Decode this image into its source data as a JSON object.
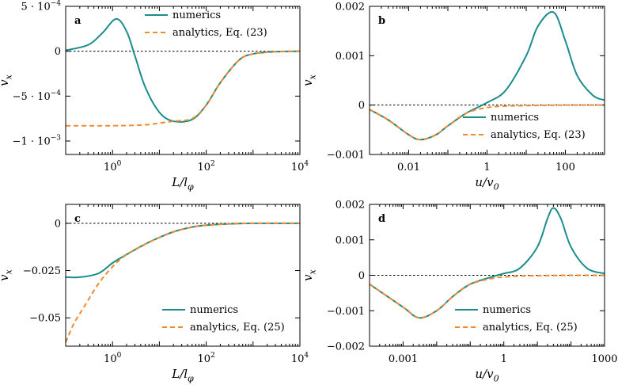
{
  "chart_data": [
    {
      "type": "line",
      "panel": "a",
      "xscale": "log",
      "xlim": [
        0.1,
        10000
      ],
      "ylim": [
        -0.00115,
        0.0005
      ],
      "xticks": [
        {
          "v": 1,
          "label": "10^0"
        },
        {
          "v": 100,
          "label": "10^2"
        },
        {
          "v": 10000,
          "label": "10^4"
        }
      ],
      "yticks": [
        {
          "v": 0.0005,
          "label": "5 · 10^−4"
        },
        {
          "v": 0,
          "label": "0"
        },
        {
          "v": -0.0005,
          "label": "−5 · 10^−4"
        },
        {
          "v": -0.001,
          "label": "−1 · 10^−3"
        }
      ],
      "xlabel": "L/l_φ",
      "ylabel": "v_x",
      "legend": {
        "position": "top-right",
        "entries": [
          "numerics",
          "analytics, Eq. (23)"
        ]
      },
      "series": [
        {
          "name": "numerics",
          "style": "solid",
          "color": "#1a8c8c",
          "x": [
            0.1,
            0.3,
            0.6,
            1.2,
            2,
            3,
            5,
            10,
            20,
            50,
            100,
            200,
            500,
            1000,
            3000,
            10000
          ],
          "y": [
            1e-05,
            7e-05,
            0.0002,
            0.00036,
            0.00022,
            -5e-05,
            -0.0004,
            -0.00068,
            -0.00078,
            -0.00076,
            -0.0006,
            -0.00035,
            -0.0001,
            -3e-05,
            -5e-06,
            0
          ]
        },
        {
          "name": "analytics, Eq. (23)",
          "style": "dashed",
          "color": "#f28a30",
          "x": [
            0.1,
            1,
            5,
            10,
            20,
            50,
            100,
            200,
            500,
            1000,
            3000,
            10000
          ],
          "y": [
            -0.00083,
            -0.00083,
            -0.00082,
            -0.0008,
            -0.00078,
            -0.00075,
            -0.0006,
            -0.00035,
            -0.0001,
            -3e-05,
            -5e-06,
            0
          ]
        }
      ]
    },
    {
      "type": "line",
      "panel": "b",
      "xscale": "log",
      "xlim": [
        0.001,
        1000
      ],
      "ylim": [
        -0.001,
        0.002
      ],
      "xticks": [
        {
          "v": 0.01,
          "label": "0.01"
        },
        {
          "v": 1,
          "label": "1"
        },
        {
          "v": 100,
          "label": "100"
        }
      ],
      "yticks": [
        {
          "v": 0.002,
          "label": "0.002"
        },
        {
          "v": 0.001,
          "label": "0.001"
        },
        {
          "v": 0,
          "label": "0"
        },
        {
          "v": -0.001,
          "label": "−0.001"
        }
      ],
      "xlabel": "u/v_0",
      "ylabel": "v_x",
      "legend": {
        "position": "bottom-right",
        "entries": [
          "numerics",
          "analytics, Eq. (23)"
        ]
      },
      "series": [
        {
          "name": "numerics",
          "style": "solid",
          "color": "#1a8c8c",
          "x": [
            0.001,
            0.003,
            0.01,
            0.02,
            0.05,
            0.1,
            0.3,
            1,
            3,
            10,
            20,
            50,
            100,
            200,
            500,
            1000
          ],
          "y": [
            -9e-05,
            -0.0003,
            -0.0006,
            -0.0007,
            -0.0006,
            -0.00042,
            -0.00016,
            5e-05,
            0.0003,
            0.001,
            0.0016,
            0.00188,
            0.0013,
            0.0006,
            0.0002,
            0.0001
          ]
        },
        {
          "name": "analytics, Eq. (23)",
          "style": "dashed",
          "color": "#f28a30",
          "x": [
            0.001,
            0.003,
            0.01,
            0.02,
            0.05,
            0.1,
            0.3,
            1,
            3,
            10,
            100,
            1000
          ],
          "y": [
            -9e-05,
            -0.0003,
            -0.0006,
            -0.0007,
            -0.0006,
            -0.00042,
            -0.00016,
            -5e-05,
            -2e-05,
            -1e-05,
            0,
            0
          ]
        }
      ]
    },
    {
      "type": "line",
      "panel": "c",
      "xscale": "log",
      "xlim": [
        0.1,
        10000
      ],
      "ylim": [
        -0.065,
        0.01
      ],
      "xticks": [
        {
          "v": 1,
          "label": "10^0"
        },
        {
          "v": 100,
          "label": "10^2"
        },
        {
          "v": 10000,
          "label": "10^4"
        }
      ],
      "yticks": [
        {
          "v": 0,
          "label": "0"
        },
        {
          "v": -0.025,
          "label": "−0.025"
        },
        {
          "v": -0.05,
          "label": "−0.05"
        }
      ],
      "xlabel": "L/l_φ",
      "ylabel": "v_x",
      "legend": {
        "position": "bottom-right",
        "entries": [
          "numerics",
          "analytics, Eq. (25)"
        ]
      },
      "series": [
        {
          "name": "numerics",
          "style": "solid",
          "color": "#1a8c8c",
          "x": [
            0.1,
            0.2,
            0.5,
            1,
            2,
            5,
            10,
            20,
            50,
            100,
            300,
            1000,
            10000
          ],
          "y": [
            -0.0285,
            -0.0285,
            -0.0265,
            -0.021,
            -0.0165,
            -0.011,
            -0.0075,
            -0.0045,
            -0.002,
            -0.001,
            -0.0003,
            0,
            0
          ]
        },
        {
          "name": "analytics, Eq. (25)",
          "style": "dashed",
          "color": "#f28a30",
          "x": [
            0.1,
            0.15,
            0.25,
            0.5,
            1,
            2,
            5,
            10,
            20,
            50,
            100,
            300,
            1000,
            10000
          ],
          "y": [
            -0.063,
            -0.053,
            -0.044,
            -0.032,
            -0.023,
            -0.0165,
            -0.011,
            -0.0075,
            -0.0045,
            -0.002,
            -0.001,
            -0.0003,
            0,
            0
          ]
        }
      ]
    },
    {
      "type": "line",
      "panel": "d",
      "xscale": "log",
      "xlim": [
        0.0001,
        1000
      ],
      "ylim": [
        -0.002,
        0.002
      ],
      "xticks": [
        {
          "v": 0.001,
          "label": "0.001"
        },
        {
          "v": 1,
          "label": "1"
        },
        {
          "v": 1000,
          "label": "1000"
        }
      ],
      "yticks": [
        {
          "v": 0.002,
          "label": "0.002"
        },
        {
          "v": 0.001,
          "label": "0.001"
        },
        {
          "v": 0,
          "label": "0"
        },
        {
          "v": -0.001,
          "label": "−0.001"
        },
        {
          "v": -0.002,
          "label": "−0.002"
        }
      ],
      "xlabel": "u/v_0",
      "ylabel": "v_x",
      "legend": {
        "position": "bottom-right",
        "entries": [
          "numerics",
          "analytics, Eq. (25)"
        ]
      },
      "series": [
        {
          "name": "numerics",
          "style": "solid",
          "color": "#1a8c8c",
          "x": [
            0.0001,
            0.001,
            0.003,
            0.01,
            0.03,
            0.1,
            0.5,
            1,
            3,
            10,
            20,
            30,
            50,
            100,
            300,
            1000
          ],
          "y": [
            -0.00025,
            -0.0009,
            -0.0012,
            -0.001,
            -0.0006,
            -0.00025,
            -3e-05,
            5e-05,
            0.0002,
            0.0008,
            0.0016,
            0.0019,
            0.0016,
            0.0008,
            0.0002,
            5e-05
          ]
        },
        {
          "name": "analytics, Eq. (25)",
          "style": "dashed",
          "color": "#f28a30",
          "x": [
            0.0001,
            0.001,
            0.003,
            0.01,
            0.03,
            0.1,
            0.5,
            1,
            3,
            10,
            100,
            1000
          ],
          "y": [
            -0.00025,
            -0.0009,
            -0.0012,
            -0.001,
            -0.0006,
            -0.00025,
            -8e-05,
            -5e-05,
            -2e-05,
            -1e-05,
            0,
            0
          ]
        }
      ]
    }
  ]
}
